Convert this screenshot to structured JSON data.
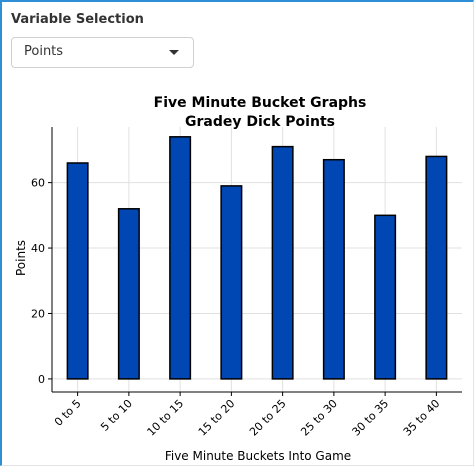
{
  "panel": {
    "variable_selection_label": "Variable Selection",
    "selected_variable": "Points",
    "dropdown_icon": "chevron-down-icon"
  },
  "chart_data": {
    "type": "bar",
    "title": "Five Minute Bucket Graphs",
    "subtitle": "Gradey Dick Points",
    "xlabel": "Five Minute Buckets Into Game",
    "ylabel": "Points",
    "categories": [
      "0 to 5",
      "5 to 10",
      "10 to 15",
      "15 to 20",
      "20 to 25",
      "25 to 30",
      "30 to 35",
      "35 to 40"
    ],
    "values": [
      66,
      52,
      74,
      59,
      71,
      67,
      50,
      68
    ],
    "yticks": [
      0,
      20,
      40,
      60
    ],
    "ylim": [
      -4,
      77
    ],
    "grid": true,
    "bar_color": "#0047b3",
    "bar_edge_color": "#000000"
  }
}
